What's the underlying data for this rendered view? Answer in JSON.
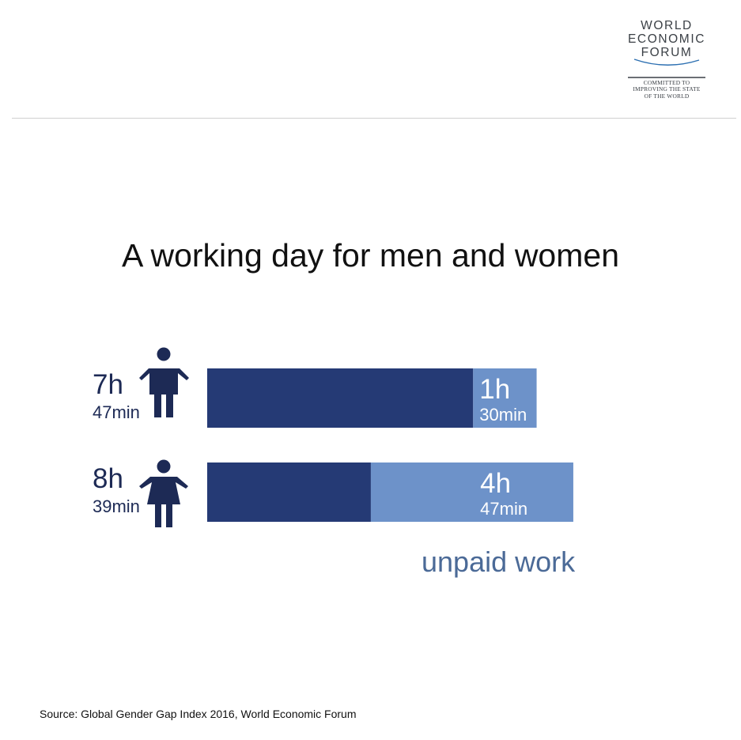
{
  "logo": {
    "lines": [
      "WORLD",
      "ECONOMIC",
      "FORUM"
    ],
    "tagline": [
      "COMMITTED TO",
      "IMPROVING THE STATE",
      "OF THE WORLD"
    ]
  },
  "colors": {
    "paid": "#253a75",
    "unpaid": "#6d92c9",
    "label": "#1d2a55",
    "unpaid_label": "#4b6a97"
  },
  "chart_data": {
    "type": "bar",
    "stacked": true,
    "orientation": "horizontal",
    "title": "A working day for men and women",
    "categories": [
      "men",
      "women"
    ],
    "icons": [
      "man-icon",
      "woman-icon"
    ],
    "total_labels": [
      {
        "hours": "7h",
        "minutes": "47min"
      },
      {
        "hours": "8h",
        "minutes": "39min"
      }
    ],
    "series": [
      {
        "key": "paid",
        "values_min": [
          377,
          232
        ]
      },
      {
        "key": "unpaid",
        "name": "unpaid work",
        "values_min": [
          90,
          287
        ]
      }
    ],
    "segment_labels": [
      {
        "hours": "1h",
        "minutes": "30min"
      },
      {
        "hours": "4h",
        "minutes": "47min"
      }
    ],
    "legend_label": "unpaid work",
    "xlim": [
      0,
      520
    ]
  },
  "source": "Source:  Global Gender Gap Index 2016, World Economic Forum"
}
